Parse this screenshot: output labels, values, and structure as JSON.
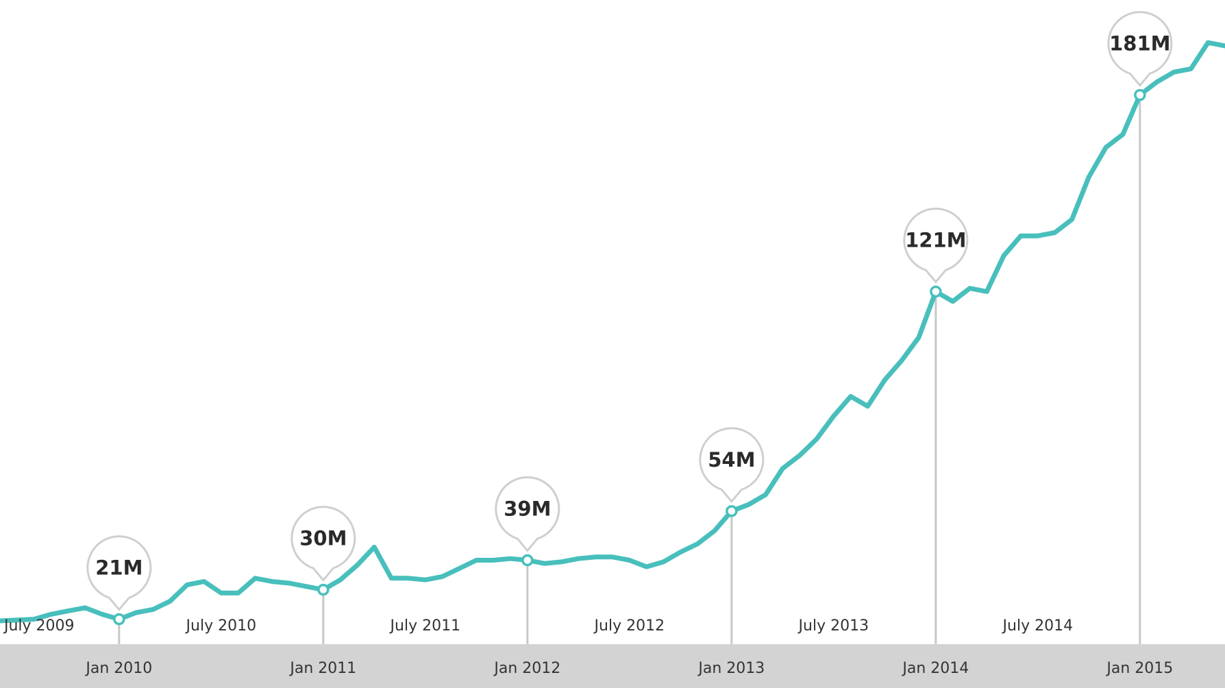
{
  "chart_data": {
    "type": "line",
    "title": "",
    "xlabel": "",
    "ylabel": "",
    "line_color": "#48bfbc",
    "axis_band_color": "#d3d3d3",
    "grid": false,
    "ylim": [
      0,
      210
    ],
    "x_start": "2009-06",
    "x_end": "2015-06",
    "x_tick_labels_top": [
      {
        "date": "2009-07",
        "label": "July 2009"
      },
      {
        "date": "2010-07",
        "label": "July 2010"
      },
      {
        "date": "2011-07",
        "label": "July 2011"
      },
      {
        "date": "2012-07",
        "label": "July 2012"
      },
      {
        "date": "2013-07",
        "label": "July 2013"
      },
      {
        "date": "2014-07",
        "label": "July 2014"
      }
    ],
    "x_tick_labels_bottom": [
      {
        "date": "2010-01",
        "label": "Jan 2010"
      },
      {
        "date": "2011-01",
        "label": "Jan 2011"
      },
      {
        "date": "2012-01",
        "label": "Jan 2012"
      },
      {
        "date": "2013-01",
        "label": "Jan 2013"
      },
      {
        "date": "2014-01",
        "label": "Jan 2014"
      },
      {
        "date": "2015-01",
        "label": "Jan 2015"
      }
    ],
    "annotations": [
      {
        "date": "2010-01",
        "value": 21,
        "label": "21M"
      },
      {
        "date": "2011-01",
        "value": 30,
        "label": "30M"
      },
      {
        "date": "2012-01",
        "value": 39,
        "label": "39M"
      },
      {
        "date": "2013-01",
        "value": 54,
        "label": "54M"
      },
      {
        "date": "2014-01",
        "value": 121,
        "label": "121M"
      },
      {
        "date": "2015-01",
        "value": 181,
        "label": "181M"
      }
    ],
    "series": [
      {
        "x": [
          "2009-06",
          "2009-08",
          "2009-09",
          "2009-10",
          "2009-11",
          "2009-12",
          "2010-01",
          "2010-02",
          "2010-03",
          "2010-04",
          "2010-05",
          "2010-06",
          "2010-07",
          "2010-08",
          "2010-09",
          "2010-10",
          "2010-11",
          "2010-12",
          "2011-01",
          "2011-02",
          "2011-03",
          "2011-04",
          "2011-05",
          "2011-06",
          "2011-07",
          "2011-08",
          "2011-09",
          "2011-10",
          "2011-11",
          "2011-12",
          "2012-01",
          "2012-02",
          "2012-03",
          "2012-04",
          "2012-05",
          "2012-06",
          "2012-07",
          "2012-08",
          "2012-09",
          "2012-10",
          "2012-11",
          "2012-12",
          "2013-01",
          "2013-02",
          "2013-03",
          "2013-04",
          "2013-05",
          "2013-06",
          "2013-07",
          "2013-08",
          "2013-09",
          "2013-10",
          "2013-11",
          "2013-12",
          "2014-01",
          "2014-02",
          "2014-03",
          "2014-04",
          "2014-05",
          "2014-06",
          "2014-07",
          "2014-08",
          "2014-09",
          "2014-10",
          "2014-11",
          "2014-12",
          "2015-01",
          "2015-02",
          "2015-03",
          "2015-04",
          "2015-05",
          "2015-06"
        ],
        "values": [
          20.5,
          21,
          22.5,
          23.5,
          24.5,
          22.5,
          21,
          23,
          24,
          26.5,
          31.5,
          32.5,
          29,
          29,
          33.5,
          32.5,
          32,
          31,
          30,
          33,
          37.5,
          43,
          33.5,
          33.5,
          33,
          34,
          36.5,
          39,
          39,
          39.5,
          39,
          38,
          38.5,
          39.5,
          40,
          40,
          39,
          37,
          38.5,
          41.5,
          44,
          48,
          54,
          56,
          59,
          67,
          71,
          76,
          83,
          89,
          86,
          94,
          100,
          107,
          121,
          118,
          122,
          121,
          132,
          138,
          138,
          139,
          143,
          156,
          165,
          169,
          181,
          185,
          188,
          189,
          197,
          196
        ]
      }
    ]
  }
}
